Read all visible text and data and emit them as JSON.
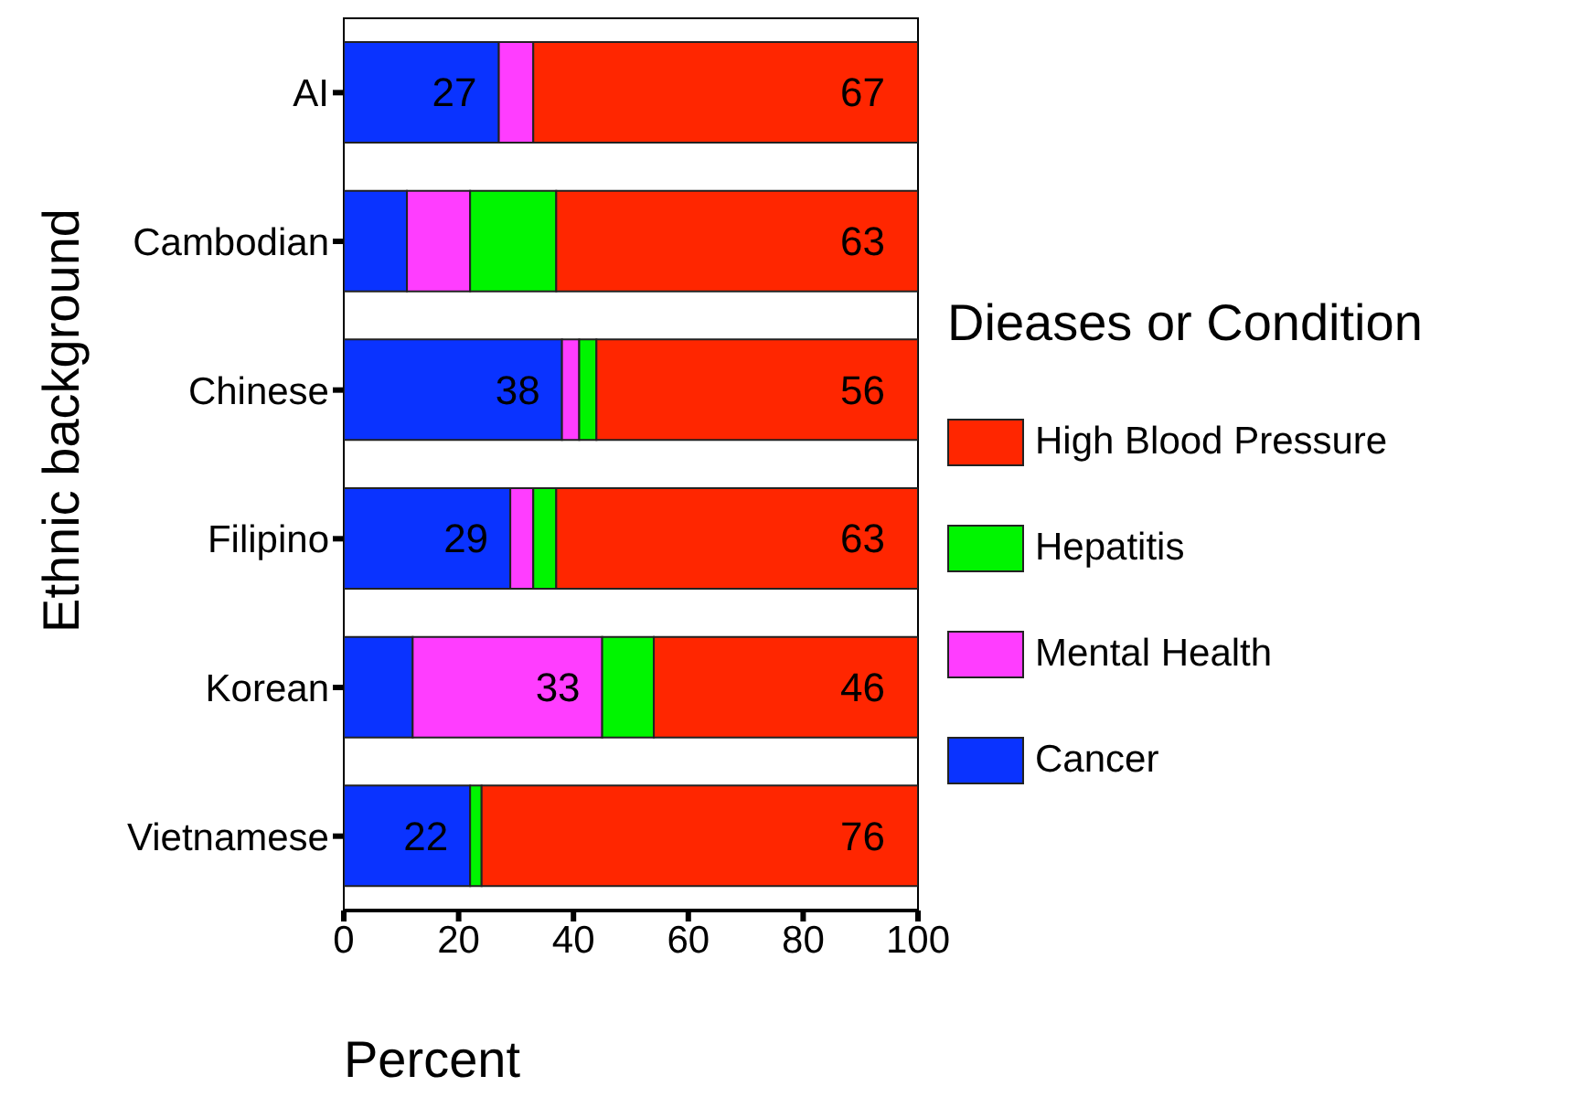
{
  "chart_data": {
    "type": "bar",
    "orientation": "horizontal",
    "stacked": true,
    "categories": [
      "AI",
      "Cambodian",
      "Chinese",
      "Filipino",
      "Korean",
      "Vietnamese"
    ],
    "series": [
      {
        "name": "Cancer",
        "color": "#0a33ff",
        "values": [
          27,
          11,
          38,
          29,
          12,
          22
        ],
        "value_labels": [
          "27",
          null,
          "38",
          "29",
          null,
          "22"
        ]
      },
      {
        "name": "Mental Health",
        "color": "#ff3dff",
        "values": [
          6,
          11,
          3,
          4,
          33,
          0
        ],
        "value_labels": [
          null,
          null,
          null,
          null,
          "33",
          null
        ]
      },
      {
        "name": "Hepatitis",
        "color": "#00f500",
        "values": [
          0,
          15,
          3,
          4,
          9,
          2
        ]
      },
      {
        "name": "High Blood Pressure",
        "color": "#ff2600",
        "values": [
          67,
          63,
          56,
          63,
          46,
          76
        ],
        "value_labels": [
          "67",
          "63",
          "56",
          "63",
          "46",
          "76"
        ]
      }
    ],
    "xlim": [
      0,
      100
    ],
    "xticks": [
      0,
      20,
      40,
      60,
      80,
      100
    ],
    "xlabel": "Percent",
    "ylabel": "Ethnic background",
    "legend_title": "Dieases or Condition",
    "legend": "right",
    "grid": false
  }
}
